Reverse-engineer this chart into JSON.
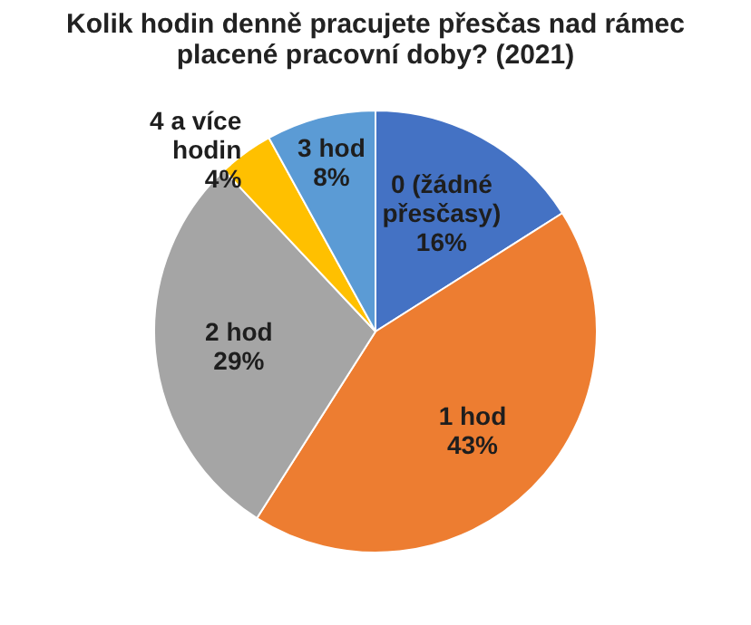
{
  "chart_data": {
    "type": "pie",
    "title": "Kolik hodin denně pracujete přesčas nad rámec placené pracovní doby? (2021)",
    "categories": [
      "0 (žádné přesčasy)",
      "1 hod",
      "2 hod",
      "4 a více hodin",
      "3 hod"
    ],
    "values": [
      16,
      43,
      29,
      4,
      8
    ],
    "value_labels": [
      "16%",
      "43%",
      "29%",
      "4%",
      "8%"
    ],
    "colors": [
      "#4472c4",
      "#ed7d31",
      "#a5a5a5",
      "#ffc000",
      "#5b9bd5"
    ],
    "legend": false
  }
}
